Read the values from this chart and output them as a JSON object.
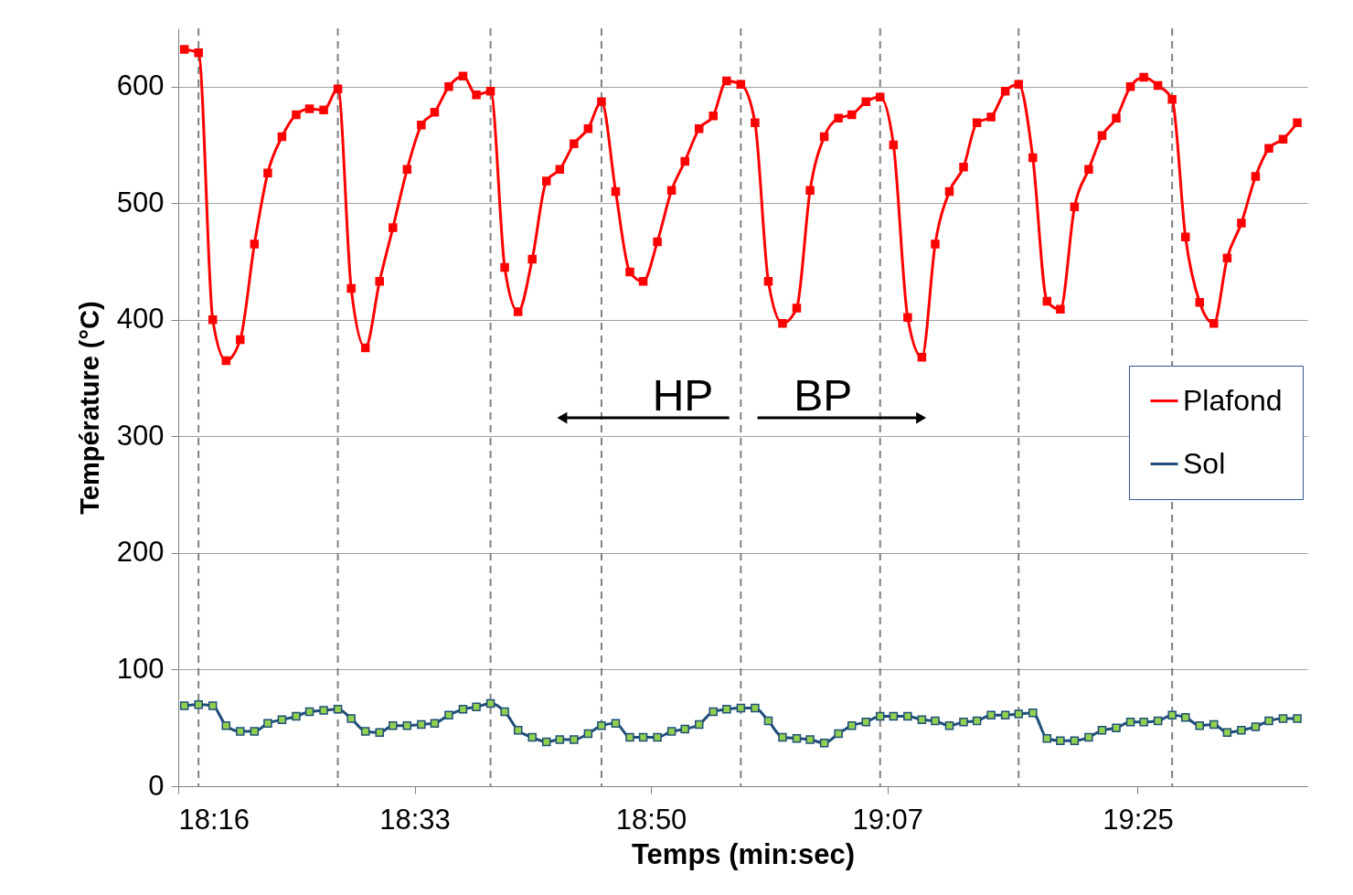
{
  "chart_data": {
    "type": "line",
    "xlabel": "Temps (min:sec)",
    "ylabel": "Température (°C)",
    "x": [
      18.274,
      18.291,
      18.308,
      18.324,
      18.341,
      18.358,
      18.374,
      18.391,
      18.408,
      18.424,
      18.441,
      18.458,
      18.474,
      18.491,
      18.508,
      18.524,
      18.541,
      18.558,
      18.574,
      18.591,
      18.608,
      18.624,
      18.641,
      18.658,
      18.674,
      18.691,
      18.708,
      18.724,
      18.741,
      18.758,
      18.774,
      18.791,
      18.808,
      18.824,
      18.841,
      18.858,
      18.874,
      18.891,
      18.908,
      18.924,
      18.941,
      18.958,
      18.974,
      18.991,
      19.008,
      19.024,
      19.041,
      19.058,
      19.074,
      19.091,
      19.108,
      19.124,
      19.141,
      19.158,
      19.174,
      19.191,
      19.208,
      19.224,
      19.241,
      19.258,
      19.274,
      19.291,
      19.308,
      19.324,
      19.341,
      19.358,
      19.374,
      19.391,
      19.408,
      19.424,
      19.441,
      19.458,
      19.474,
      19.491,
      19.508,
      19.524,
      19.541,
      19.558,
      19.574,
      19.591,
      19.608
    ],
    "series": [
      {
        "name": "Plafond",
        "color": "#ff0000",
        "values": [
          632,
          629,
          400,
          365,
          383,
          465,
          526,
          557,
          576,
          581,
          580,
          598,
          427,
          376,
          433,
          479,
          529,
          567,
          578,
          600,
          609,
          593,
          596,
          445,
          407,
          452,
          519,
          529,
          551,
          564,
          587,
          510,
          441,
          433,
          467,
          511,
          536,
          564,
          575,
          605,
          602,
          569,
          433,
          397,
          410,
          511,
          557,
          573,
          576,
          587,
          591,
          550,
          402,
          368,
          465,
          510,
          531,
          569,
          574,
          596,
          602,
          539,
          416,
          409,
          497,
          529,
          558,
          573,
          600,
          608,
          601,
          589,
          471,
          415,
          397,
          453,
          483,
          523,
          547,
          555,
          569
        ]
      },
      {
        "name": "Sol",
        "color": "#1f4e79",
        "values": [
          69,
          70,
          69,
          52,
          47,
          47,
          54,
          57,
          60,
          64,
          65,
          66,
          58,
          47,
          46,
          52,
          52,
          53,
          54,
          61,
          66,
          68,
          71,
          64,
          48,
          42,
          38,
          40,
          40,
          45,
          52,
          54,
          42,
          42,
          42,
          47,
          49,
          53,
          64,
          66,
          67,
          67,
          56,
          42,
          41,
          40,
          37,
          45,
          52,
          55,
          60,
          60,
          60,
          57,
          56,
          52,
          55,
          56,
          61,
          61,
          62,
          63,
          41,
          39,
          39,
          42,
          48,
          50,
          55,
          55,
          56,
          61,
          59,
          52,
          53,
          46,
          48,
          51,
          56,
          58,
          58
        ]
      }
    ],
    "xlim": [
      18.2667,
      19.62
    ],
    "xticks": [
      {
        "value": 18.2667,
        "label": "18:16"
      },
      {
        "value": 18.55,
        "label": "18:33"
      },
      {
        "value": 18.8333,
        "label": "18:50"
      },
      {
        "value": 19.1167,
        "label": "19:07"
      },
      {
        "value": 19.4167,
        "label": "19:25"
      }
    ],
    "ylim": [
      0,
      650
    ],
    "yticks": [
      0,
      100,
      200,
      300,
      400,
      500,
      600
    ],
    "ref_lines": [
      {
        "axis": "x",
        "value": 18.291,
        "color": "#808080",
        "line_style": "dashed"
      },
      {
        "axis": "x",
        "value": 18.458,
        "color": "#808080",
        "line_style": "dashed"
      },
      {
        "axis": "x",
        "value": 18.641,
        "color": "#808080",
        "line_style": "dashed"
      },
      {
        "axis": "x",
        "value": 18.774,
        "color": "#808080",
        "line_style": "dashed"
      },
      {
        "axis": "x",
        "value": 18.941,
        "color": "#808080",
        "line_style": "dashed"
      },
      {
        "axis": "x",
        "value": 19.108,
        "color": "#808080",
        "line_style": "dashed"
      },
      {
        "axis": "x",
        "value": 19.274,
        "color": "#808080",
        "line_style": "dashed"
      },
      {
        "axis": "x",
        "value": 19.458,
        "color": "#808080",
        "line_style": "dashed"
      }
    ],
    "annotations": [
      "HP",
      "BP"
    ],
    "grid": "y",
    "legend": "right",
    "marker": "square",
    "line_style": "solid"
  }
}
